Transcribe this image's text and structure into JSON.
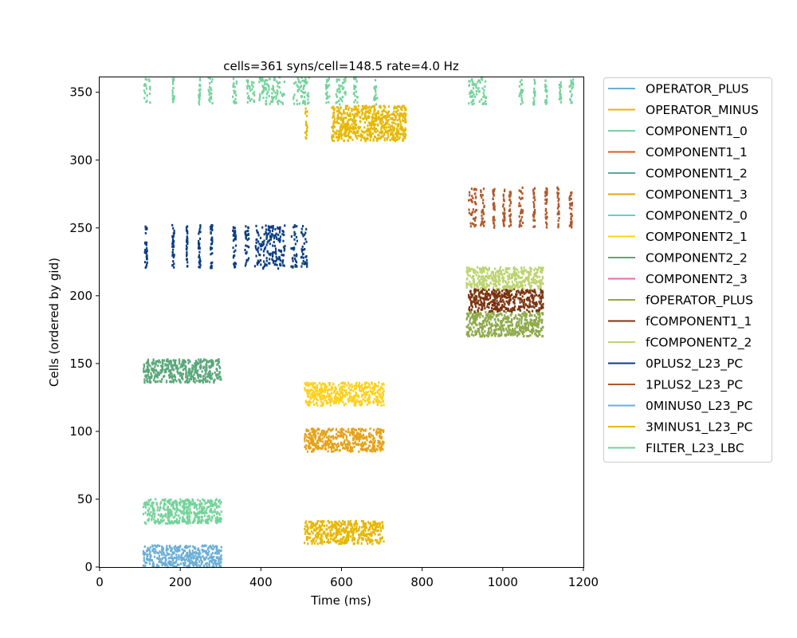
{
  "chart_data": {
    "type": "scatter",
    "title": "cells=361   syns/cell=148.5   rate=4.0 Hz",
    "xlabel": "Time (ms)",
    "ylabel": "Cells (ordered by gid)",
    "xlim": [
      0,
      1200
    ],
    "ylim": [
      0,
      361
    ],
    "xticks": [
      0,
      200,
      400,
      600,
      800,
      1000,
      1200
    ],
    "yticks": [
      0,
      50,
      100,
      150,
      200,
      250,
      300,
      350
    ],
    "legend_position": "outside-right",
    "grid": false,
    "series": [
      {
        "name": "OPERATOR_PLUS",
        "color": "#6baed6",
        "gid_range": [
          0,
          16
        ],
        "time_windows_ms": [
          [
            108,
            302
          ]
        ],
        "fill": "dense"
      },
      {
        "name": "OPERATOR_MINUS",
        "color": "#e6b800",
        "gid_range": [
          314,
          340
        ],
        "time_windows_ms": [
          [
            510,
            515
          ],
          [
            575,
            760
          ]
        ],
        "fill": "dense"
      },
      {
        "name": "COMPONENT1_0",
        "color": "#74d39b",
        "gid_range": [
          341,
          361
        ],
        "time_windows_ms": [
          [
            110,
            125
          ],
          [
            180,
            185
          ],
          [
            245,
            250
          ],
          [
            270,
            280
          ],
          [
            330,
            340
          ],
          [
            365,
            385
          ],
          [
            395,
            460
          ],
          [
            480,
            520
          ],
          [
            560,
            570
          ],
          [
            585,
            610
          ],
          [
            630,
            640
          ],
          [
            680,
            690
          ],
          [
            915,
            960
          ],
          [
            1040,
            1050
          ],
          [
            1075,
            1080
          ],
          [
            1105,
            1110
          ],
          [
            1140,
            1145
          ],
          [
            1165,
            1175
          ]
        ],
        "fill": "sparse"
      },
      {
        "name": "COMPONENT1_1",
        "color": "#e2581e",
        "gid_range": [
          0,
          0
        ],
        "time_windows_ms": [],
        "fill": "none"
      },
      {
        "name": "COMPONENT1_2",
        "color": "#5aa6a2",
        "gid_range": [
          0,
          0
        ],
        "time_windows_ms": [],
        "fill": "none"
      },
      {
        "name": "COMPONENT1_3",
        "color": "#e5a21a",
        "gid_range": [
          0,
          0
        ],
        "time_windows_ms": [],
        "fill": "none"
      },
      {
        "name": "COMPONENT2_0",
        "color": "#66cdd1",
        "gid_range": [
          0,
          0
        ],
        "time_windows_ms": [],
        "fill": "none"
      },
      {
        "name": "COMPONENT2_1",
        "color": "#ffd11a",
        "gid_range": [
          0,
          0
        ],
        "time_windows_ms": [],
        "fill": "none"
      },
      {
        "name": "COMPONENT2_2",
        "color": "#5aa77a",
        "gid_range": [
          0,
          0
        ],
        "time_windows_ms": [],
        "fill": "none"
      },
      {
        "name": "COMPONENT2_3",
        "color": "#e76aa0",
        "gid_range": [
          0,
          0
        ],
        "time_windows_ms": [],
        "fill": "none"
      },
      {
        "name": "fOPERATOR_PLUS",
        "color": "#8faa4a",
        "gid_range": [
          170,
          188
        ],
        "time_windows_ms": [
          [
            910,
            1100
          ]
        ],
        "fill": "dense"
      },
      {
        "name": "fCOMPONENT1_1",
        "color": "#7b3410",
        "gid_range": [
          188,
          205
        ],
        "time_windows_ms": [
          [
            915,
            1100
          ]
        ],
        "fill": "dense"
      },
      {
        "name": "fCOMPONENT2_2",
        "color": "#bcd470",
        "gid_range": [
          205,
          221
        ],
        "time_windows_ms": [
          [
            910,
            1100
          ]
        ],
        "fill": "dense"
      },
      {
        "name": "0PLUS2_L23_PC",
        "color": "#0b3d82",
        "gid_range": [
          220,
          252
        ],
        "time_windows_ms": [
          [
            112,
            118
          ],
          [
            180,
            185
          ],
          [
            215,
            218
          ],
          [
            245,
            250
          ],
          [
            275,
            280
          ],
          [
            330,
            338
          ],
          [
            360,
            370
          ],
          [
            385,
            460
          ],
          [
            475,
            490
          ],
          [
            500,
            515
          ]
        ],
        "fill": "sparse"
      },
      {
        "name": "1PLUS2_L23_PC",
        "color": "#b0582a",
        "gid_range": [
          250,
          280
        ],
        "time_windows_ms": [
          [
            915,
            935
          ],
          [
            945,
            955
          ],
          [
            975,
            980
          ],
          [
            1000,
            1005
          ],
          [
            1015,
            1020
          ],
          [
            1040,
            1050
          ],
          [
            1075,
            1080
          ],
          [
            1105,
            1110
          ],
          [
            1135,
            1140
          ],
          [
            1165,
            1172
          ]
        ],
        "fill": "sparse"
      },
      {
        "name": "0MINUS0_L23_PC",
        "color": "#6baed6",
        "gid_range": [
          0,
          0
        ],
        "time_windows_ms": [],
        "fill": "none"
      },
      {
        "name": "3MINUS1_L23_PC",
        "color": "#e6b800",
        "gid_range": [
          0,
          0
        ],
        "time_windows_ms": [],
        "fill": "none"
      },
      {
        "name": "FILTER_L23_LBC",
        "color": "#74d39b",
        "gid_range": [
          0,
          0
        ],
        "time_windows_ms": [],
        "fill": "none"
      }
    ],
    "unlabeled_blocks": [
      {
        "color": "#74d39b",
        "gid_range": [
          32,
          50
        ],
        "time_windows_ms": [
          [
            108,
            302
          ]
        ]
      },
      {
        "color": "#5aa77a",
        "gid_range": [
          136,
          153
        ],
        "time_windows_ms": [
          [
            108,
            302
          ]
        ]
      },
      {
        "color": "#ffd11a",
        "gid_range": [
          119,
          136
        ],
        "time_windows_ms": [
          [
            508,
            705
          ]
        ]
      },
      {
        "color": "#e5a21a",
        "gid_range": [
          85,
          102
        ],
        "time_windows_ms": [
          [
            508,
            705
          ]
        ]
      },
      {
        "color": "#e6b800",
        "gid_range": [
          17,
          34
        ],
        "time_windows_ms": [
          [
            508,
            705
          ]
        ]
      }
    ]
  }
}
